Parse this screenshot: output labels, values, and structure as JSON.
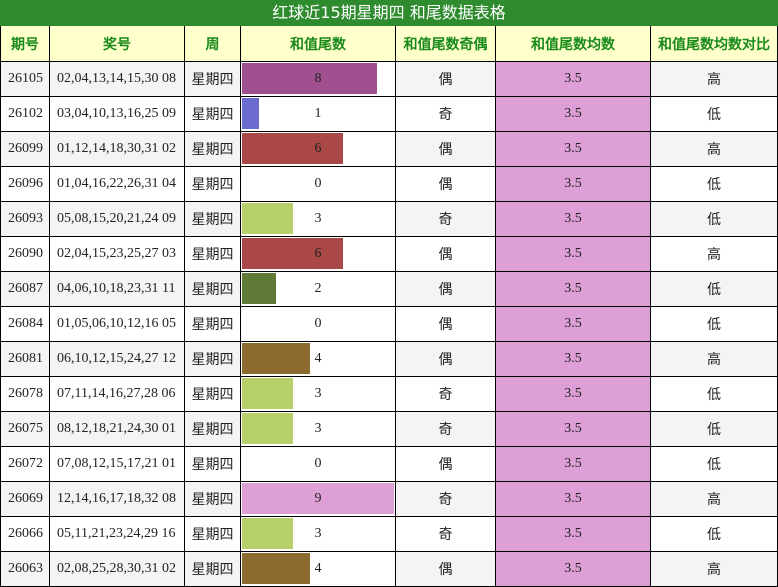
{
  "header": {
    "title": "红球近15期星期四 和尾数据表格"
  },
  "table": {
    "columns": [
      "期号",
      "奖号",
      "周",
      "和值尾数",
      "和值尾数奇偶",
      "和值尾数均数",
      "和值尾数均数对比"
    ],
    "bar_scale": [
      0,
      9
    ],
    "rows": [
      [
        "26105",
        "02,04,13,14,15,30 08",
        "星期四",
        8,
        "偶",
        3.5,
        "高"
      ],
      [
        "26102",
        "03,04,10,13,16,25 09",
        "星期四",
        1,
        "奇",
        3.5,
        "低"
      ],
      [
        "26099",
        "01,12,14,18,30,31 02",
        "星期四",
        6,
        "偶",
        3.5,
        "高"
      ],
      [
        "26096",
        "01,04,16,22,26,31 04",
        "星期四",
        0,
        "偶",
        3.5,
        "低"
      ],
      [
        "26093",
        "05,08,15,20,21,24 09",
        "星期四",
        3,
        "奇",
        3.5,
        "低"
      ],
      [
        "26090",
        "02,04,15,23,25,27 03",
        "星期四",
        6,
        "偶",
        3.5,
        "高"
      ],
      [
        "26087",
        "04,06,10,18,23,31 11",
        "星期四",
        2,
        "偶",
        3.5,
        "低"
      ],
      [
        "26084",
        "01,05,06,10,12,16 05",
        "星期四",
        0,
        "偶",
        3.5,
        "低"
      ],
      [
        "26081",
        "06,10,12,15,24,27 12",
        "星期四",
        4,
        "偶",
        3.5,
        "高"
      ],
      [
        "26078",
        "07,11,14,16,27,28 06",
        "星期四",
        3,
        "奇",
        3.5,
        "低"
      ],
      [
        "26075",
        "08,12,18,21,24,30 01",
        "星期四",
        3,
        "奇",
        3.5,
        "低"
      ],
      [
        "26072",
        "07,08,12,15,17,21 01",
        "星期四",
        0,
        "偶",
        3.5,
        "低"
      ],
      [
        "26069",
        "12,14,16,17,18,32 08",
        "星期四",
        9,
        "奇",
        3.5,
        "高"
      ],
      [
        "26066",
        "05,11,21,23,24,29 16",
        "星期四",
        3,
        "奇",
        3.5,
        "低"
      ],
      [
        "26063",
        "02,08,25,28,30,31 02",
        "星期四",
        4,
        "偶",
        3.5,
        "高"
      ]
    ],
    "bar_colors": [
      "#a0508f",
      "#6b6bcf",
      "#aa4848",
      null,
      "#b8d06a",
      "#aa4848",
      "#5f7a36",
      null,
      "#8b6b2e",
      "#b8d06a",
      "#b8d06a",
      null,
      "#dd9fd5",
      "#b8d06a",
      "#8b6b2e"
    ]
  }
}
